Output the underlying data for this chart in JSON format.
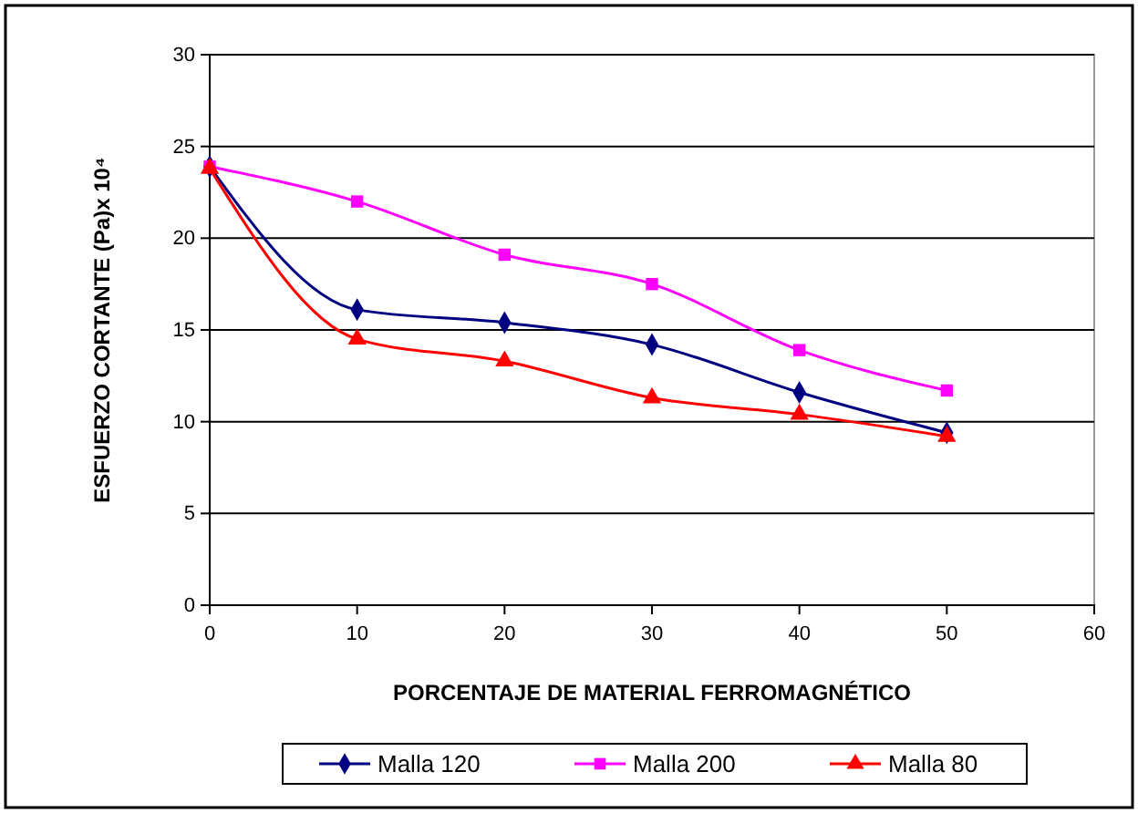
{
  "chart_data": {
    "type": "line",
    "xlabel": "PORCENTAJE DE MATERIAL FERROMAGNÉTICO",
    "ylabel": "ESFUERZO CORTANTE  (Pa)x 10⁴",
    "x": [
      0,
      10,
      20,
      30,
      40,
      50
    ],
    "series": [
      {
        "name": "Malla 120",
        "color": "#000080",
        "marker": "diamond",
        "values": [
          23.9,
          16.1,
          15.4,
          14.2,
          11.6,
          9.4
        ]
      },
      {
        "name": "Malla 200",
        "color": "#ff00ff",
        "marker": "square",
        "values": [
          23.9,
          22.0,
          19.1,
          17.5,
          13.9,
          11.7
        ]
      },
      {
        "name": "Malla 80",
        "color": "#ff0000",
        "marker": "triangle",
        "values": [
          23.8,
          14.5,
          13.3,
          11.3,
          10.4,
          9.2
        ]
      }
    ],
    "xlim": [
      0,
      60
    ],
    "xticks": [
      0,
      10,
      20,
      30,
      40,
      50,
      60
    ],
    "ylim": [
      0,
      30
    ],
    "yticks": [
      0,
      5,
      10,
      15,
      20,
      25,
      30
    ],
    "grid": "y",
    "legend": "bottom",
    "line_style": "solid"
  }
}
